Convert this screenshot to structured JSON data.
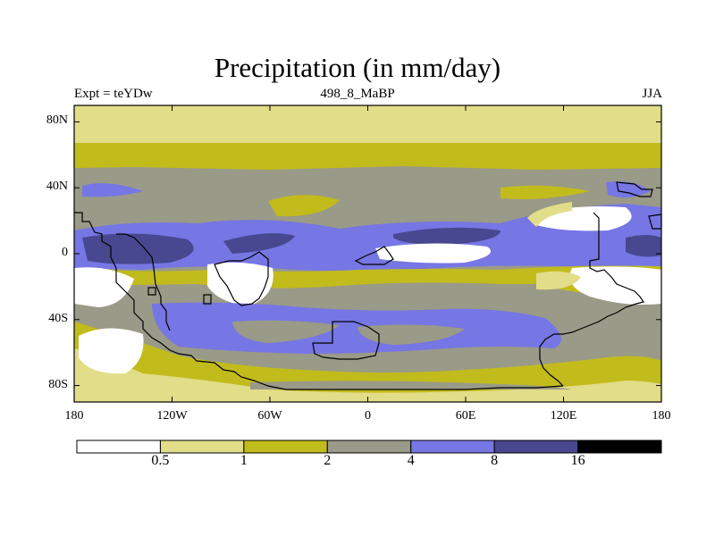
{
  "chart_data": {
    "type": "heatmap",
    "title": "Precipitation (in mm/day)",
    "subtitle_left": "Expt = teYDw",
    "subtitle_center": "498_8_MaBP",
    "subtitle_right": "JJA",
    "x_ticks": [
      "180",
      "120W",
      "60W",
      "0",
      "60E",
      "120E",
      "180"
    ],
    "x_tick_values": [
      -180,
      -120,
      -60,
      0,
      60,
      120,
      180
    ],
    "y_ticks": [
      "80N",
      "40N",
      "0",
      "40S",
      "80S"
    ],
    "y_tick_values": [
      80,
      40,
      0,
      -40,
      -80
    ],
    "xlim": [
      -180,
      180
    ],
    "ylim": [
      -90,
      90
    ],
    "colorbar": {
      "levels": [
        "0.5",
        "1",
        "2",
        "4",
        "8",
        "16"
      ],
      "colors": [
        "#ffffff",
        "#e2dd88",
        "#c2bb1c",
        "#9a9a88",
        "#7676e4",
        "#484890",
        "#000000"
      ]
    },
    "description": "Zonal bands of JJA precipitation with land-sea outlines"
  }
}
